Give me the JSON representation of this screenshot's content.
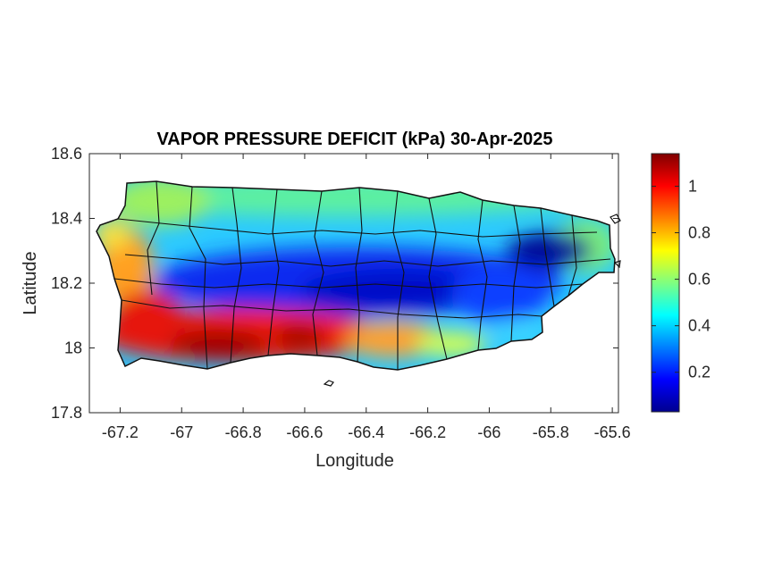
{
  "map": {
    "title": "VAPOR PRESSURE DEFICIT (kPa) 30-Apr-2025",
    "xlabel": "Longitude",
    "ylabel": "Latitude",
    "x_ticks": [
      "-67.2",
      "-67",
      "-66.8",
      "-66.6",
      "-66.4",
      "-66.2",
      "-66",
      "-65.8",
      "-65.6"
    ],
    "y_ticks": [
      "18.6",
      "18.4",
      "18.2",
      "18",
      "17.8"
    ],
    "colorbar_ticks": [
      "1",
      "0.8",
      "0.6",
      "0.4",
      "0.2"
    ],
    "colormap": "jet",
    "region": "Puerto Rico"
  },
  "chart_data": {
    "type": "heatmap",
    "title": "VAPOR PRESSURE DEFICIT (kPa) 30-Apr-2025",
    "xlabel": "Longitude",
    "ylabel": "Latitude",
    "xlim": [
      -67.3,
      -65.58
    ],
    "ylim": [
      17.8,
      18.6
    ],
    "x_ticks": [
      -67.2,
      -67,
      -66.8,
      -66.6,
      -66.4,
      -66.2,
      -66,
      -65.8,
      -65.6
    ],
    "y_ticks": [
      17.8,
      18.0,
      18.2,
      18.4,
      18.6
    ],
    "colorbar": {
      "min": 0.03,
      "max": 1.14,
      "ticks": [
        0.2,
        0.4,
        0.6,
        0.8,
        1
      ]
    },
    "grid": false,
    "colors": {
      "low": "#00008f",
      "mid_low": "#0080ff",
      "mid": "#80ff80",
      "mid_high": "#ff8000",
      "high": "#800000"
    },
    "patterns": [
      {
        "region": "south coast, lon -67.15 to -66.45",
        "vpd": 1.0
      },
      {
        "region": "southwest corner, lon -67.2 to -67.05",
        "vpd": 0.95
      },
      {
        "region": "west coast near lat 18.25",
        "vpd": 0.8
      },
      {
        "region": "south-central coast, lon -66.4 to -66.15",
        "vpd": 0.75
      },
      {
        "region": "north coast band",
        "vpd": 0.5
      },
      {
        "region": "central mountains band near lat 18.17",
        "vpd": 0.15
      },
      {
        "region": "east interior near lon -65.8, lat 18.29",
        "vpd": 0.05
      },
      {
        "region": "northeast tip",
        "vpd": 0.5
      }
    ]
  }
}
